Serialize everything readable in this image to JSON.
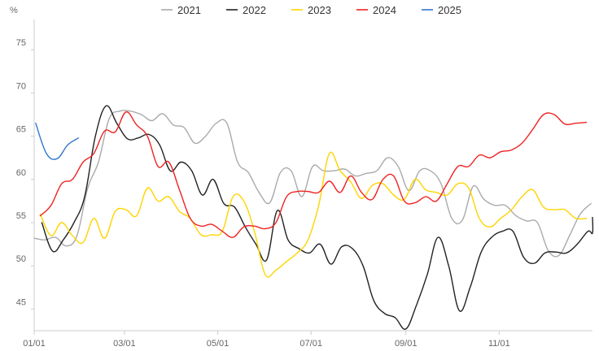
{
  "chart_data": {
    "type": "line",
    "y_unit_label": "%",
    "ylim": [
      42.5,
      78.5
    ],
    "y_ticks": [
      45,
      50,
      55,
      60,
      65,
      70,
      75
    ],
    "x_ticks": [
      {
        "label": "01/01",
        "day": 1
      },
      {
        "label": "03/01",
        "day": 60
      },
      {
        "label": "05/01",
        "day": 121
      },
      {
        "label": "07/01",
        "day": 182
      },
      {
        "label": "09/01",
        "day": 244
      },
      {
        "label": "11/01",
        "day": 305
      }
    ],
    "xlim": [
      1,
      366
    ],
    "grid": false,
    "legend_position": "top-center",
    "series": [
      {
        "name": "2021",
        "color": "#aaaaaa",
        "points": [
          [
            1,
            53.2
          ],
          [
            8,
            53.0
          ],
          [
            15,
            53.3
          ],
          [
            22,
            52.3
          ],
          [
            29,
            53.5
          ],
          [
            36,
            59.0
          ],
          [
            43,
            62.0
          ],
          [
            50,
            67.0
          ],
          [
            57,
            67.9
          ],
          [
            64,
            67.9
          ],
          [
            71,
            67.5
          ],
          [
            78,
            66.8
          ],
          [
            85,
            67.6
          ],
          [
            92,
            66.3
          ],
          [
            99,
            66.0
          ],
          [
            106,
            64.2
          ],
          [
            113,
            65.0
          ],
          [
            120,
            66.5
          ],
          [
            127,
            66.5
          ],
          [
            134,
            62.0
          ],
          [
            141,
            60.8
          ],
          [
            148,
            58.5
          ],
          [
            155,
            57.3
          ],
          [
            162,
            60.8
          ],
          [
            169,
            61.0
          ],
          [
            176,
            58.0
          ],
          [
            183,
            61.5
          ],
          [
            190,
            61.0
          ],
          [
            197,
            61.0
          ],
          [
            204,
            61.2
          ],
          [
            211,
            60.4
          ],
          [
            218,
            60.7
          ],
          [
            225,
            61.0
          ],
          [
            232,
            62.5
          ],
          [
            239,
            61.5
          ],
          [
            246,
            58.7
          ],
          [
            253,
            61.0
          ],
          [
            260,
            61.0
          ],
          [
            267,
            59.5
          ],
          [
            274,
            55.5
          ],
          [
            281,
            55.3
          ],
          [
            288,
            59.2
          ],
          [
            295,
            57.7
          ],
          [
            302,
            57.0
          ],
          [
            309,
            57.0
          ],
          [
            316,
            55.8
          ],
          [
            323,
            55.2
          ],
          [
            330,
            55.0
          ],
          [
            337,
            51.8
          ],
          [
            344,
            51.2
          ],
          [
            351,
            53.5
          ],
          [
            358,
            56.0
          ],
          [
            365,
            57.2
          ]
        ]
      },
      {
        "name": "2022",
        "color": "#222222",
        "points": [
          [
            6,
            55.0
          ],
          [
            13,
            51.7
          ],
          [
            20,
            53.0
          ],
          [
            27,
            55.0
          ],
          [
            34,
            58.0
          ],
          [
            41,
            65.0
          ],
          [
            48,
            68.5
          ],
          [
            55,
            66.5
          ],
          [
            62,
            64.7
          ],
          [
            69,
            64.8
          ],
          [
            76,
            65.2
          ],
          [
            83,
            64.0
          ],
          [
            90,
            61.0
          ],
          [
            97,
            62.0
          ],
          [
            104,
            61.0
          ],
          [
            111,
            58.2
          ],
          [
            118,
            60.0
          ],
          [
            125,
            57.2
          ],
          [
            132,
            56.8
          ],
          [
            139,
            54.5
          ],
          [
            146,
            52.5
          ],
          [
            153,
            50.7
          ],
          [
            160,
            56.4
          ],
          [
            167,
            53.0
          ],
          [
            174,
            52.0
          ],
          [
            181,
            51.5
          ],
          [
            188,
            52.5
          ],
          [
            195,
            50.2
          ],
          [
            202,
            52.2
          ],
          [
            209,
            52.0
          ],
          [
            216,
            50.0
          ],
          [
            223,
            46.0
          ],
          [
            230,
            44.5
          ],
          [
            237,
            44.0
          ],
          [
            244,
            42.7
          ],
          [
            251,
            45.5
          ],
          [
            258,
            49.0
          ],
          [
            265,
            53.3
          ],
          [
            272,
            50.0
          ],
          [
            279,
            44.8
          ],
          [
            286,
            47.5
          ],
          [
            293,
            51.5
          ],
          [
            300,
            53.3
          ],
          [
            307,
            54.0
          ],
          [
            314,
            54.0
          ],
          [
            321,
            51.0
          ],
          [
            328,
            50.3
          ],
          [
            335,
            51.5
          ],
          [
            342,
            51.6
          ],
          [
            349,
            51.5
          ],
          [
            356,
            52.5
          ],
          [
            363,
            54.0
          ],
          [
            370,
            53.8
          ],
          [
            377,
            55.6
          ]
        ]
      },
      {
        "name": "2023",
        "color": "#ffd400",
        "points": [
          [
            5,
            56.0
          ],
          [
            12,
            53.5
          ],
          [
            19,
            55.0
          ],
          [
            26,
            53.5
          ],
          [
            33,
            52.7
          ],
          [
            40,
            55.5
          ],
          [
            47,
            53.2
          ],
          [
            54,
            56.3
          ],
          [
            61,
            56.5
          ],
          [
            68,
            55.8
          ],
          [
            75,
            59.0
          ],
          [
            82,
            57.5
          ],
          [
            89,
            58.0
          ],
          [
            96,
            56.3
          ],
          [
            103,
            55.5
          ],
          [
            110,
            53.6
          ],
          [
            117,
            53.6
          ],
          [
            124,
            54.0
          ],
          [
            131,
            58.0
          ],
          [
            138,
            57.5
          ],
          [
            145,
            54.0
          ],
          [
            152,
            49.0
          ],
          [
            159,
            49.5
          ],
          [
            166,
            50.5
          ],
          [
            173,
            51.5
          ],
          [
            180,
            53.0
          ],
          [
            187,
            57.0
          ],
          [
            194,
            63.0
          ],
          [
            201,
            61.0
          ],
          [
            208,
            59.7
          ],
          [
            215,
            57.8
          ],
          [
            222,
            59.3
          ],
          [
            229,
            59.5
          ],
          [
            236,
            58.2
          ],
          [
            243,
            57.7
          ],
          [
            250,
            60.0
          ],
          [
            257,
            58.8
          ],
          [
            264,
            58.5
          ],
          [
            271,
            58.2
          ],
          [
            278,
            59.5
          ],
          [
            285,
            59.0
          ],
          [
            292,
            55.5
          ],
          [
            299,
            54.5
          ],
          [
            306,
            55.5
          ],
          [
            313,
            56.5
          ],
          [
            320,
            58.0
          ],
          [
            327,
            58.8
          ],
          [
            334,
            56.8
          ],
          [
            341,
            56.5
          ],
          [
            348,
            56.5
          ],
          [
            355,
            55.5
          ],
          [
            362,
            55.5
          ]
        ]
      },
      {
        "name": "2024",
        "color": "#ee2222",
        "points": [
          [
            5,
            55.8
          ],
          [
            12,
            57.0
          ],
          [
            19,
            59.5
          ],
          [
            26,
            60.0
          ],
          [
            33,
            62.0
          ],
          [
            40,
            63.0
          ],
          [
            47,
            65.6
          ],
          [
            54,
            65.5
          ],
          [
            61,
            67.8
          ],
          [
            68,
            66.3
          ],
          [
            75,
            65.0
          ],
          [
            82,
            61.5
          ],
          [
            89,
            62.0
          ],
          [
            96,
            58.8
          ],
          [
            103,
            55.5
          ],
          [
            110,
            54.6
          ],
          [
            117,
            54.8
          ],
          [
            124,
            54.0
          ],
          [
            131,
            53.3
          ],
          [
            138,
            54.5
          ],
          [
            145,
            54.6
          ],
          [
            152,
            54.3
          ],
          [
            159,
            55.0
          ],
          [
            166,
            58.0
          ],
          [
            173,
            58.6
          ],
          [
            180,
            58.6
          ],
          [
            187,
            58.5
          ],
          [
            194,
            59.8
          ],
          [
            201,
            58.5
          ],
          [
            208,
            60.4
          ],
          [
            215,
            58.5
          ],
          [
            222,
            57.7
          ],
          [
            229,
            60.0
          ],
          [
            236,
            60.4
          ],
          [
            243,
            57.5
          ],
          [
            250,
            57.3
          ],
          [
            257,
            58.0
          ],
          [
            264,
            57.5
          ],
          [
            271,
            59.5
          ],
          [
            278,
            61.5
          ],
          [
            285,
            61.5
          ],
          [
            292,
            62.8
          ],
          [
            299,
            62.5
          ],
          [
            306,
            63.2
          ],
          [
            313,
            63.4
          ],
          [
            320,
            64.2
          ],
          [
            327,
            65.8
          ],
          [
            334,
            67.5
          ],
          [
            341,
            67.5
          ],
          [
            348,
            66.4
          ],
          [
            355,
            66.5
          ],
          [
            362,
            66.6
          ]
        ]
      },
      {
        "name": "2025",
        "color": "#3377cc",
        "points": [
          [
            2,
            66.5
          ],
          [
            9,
            63.0
          ],
          [
            16,
            62.4
          ],
          [
            23,
            64.0
          ],
          [
            30,
            64.8
          ]
        ]
      }
    ]
  }
}
